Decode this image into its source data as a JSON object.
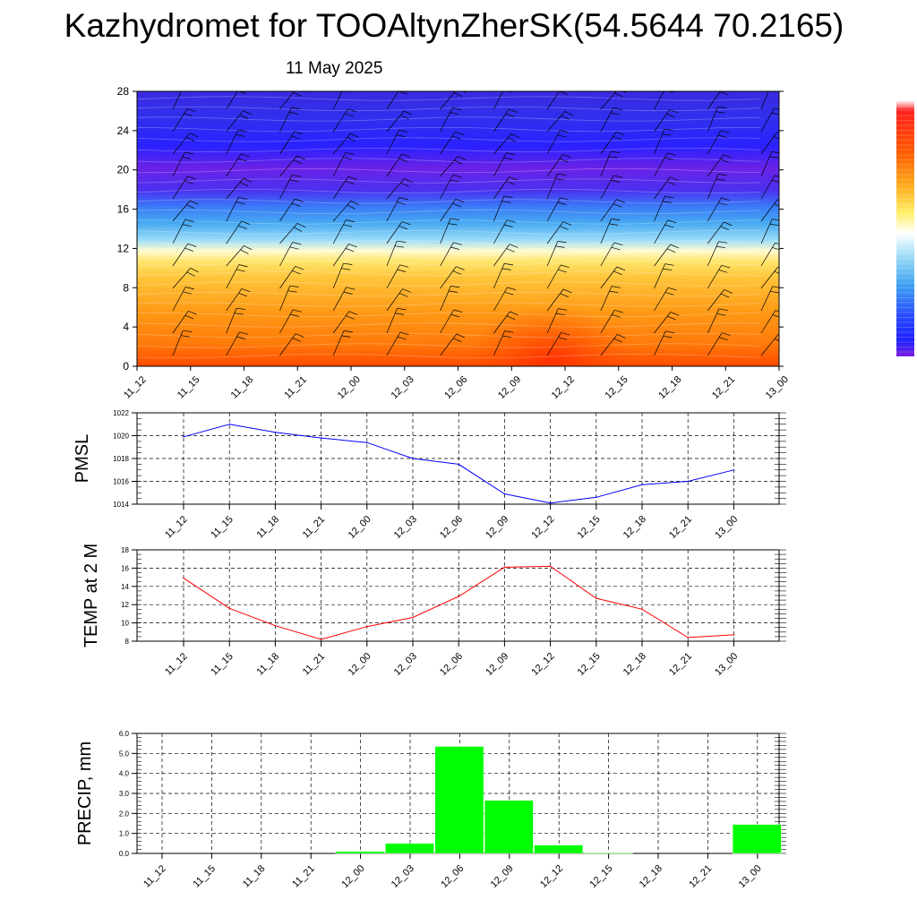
{
  "title": "Kazhydromet for TOOAltynZherSK(54.5644 70.2165)",
  "date": "11 May 2025",
  "colors": {
    "pmsl": "#0000ff",
    "temp": "#ff0000",
    "precip": "#00ff00",
    "wind_barb": "#000000",
    "cross_section_scale": [
      "#5a12e0",
      "#2020ff",
      "#2a4cff",
      "#3fa2f0",
      "#a6e0f8",
      "#fff7a0",
      "#ffd84a",
      "#ffb020",
      "#ff8a10",
      "#ff5a00",
      "#e01010"
    ]
  },
  "chart_data": [
    {
      "type": "heatmap",
      "title": "",
      "x": [
        "11_12",
        "11_15",
        "11_18",
        "11_21",
        "12_00",
        "12_03",
        "12_06",
        "12_09",
        "12_12",
        "12_15",
        "12_18",
        "12_21",
        "13_00"
      ],
      "y_ticks": [
        "0",
        "4",
        "8",
        "12",
        "16",
        "20",
        "24",
        "28"
      ],
      "ylim": [
        0,
        28
      ],
      "colorbar": "right",
      "wind_barbs": true
    },
    {
      "type": "line",
      "ylabel": "PMSL",
      "x": [
        "11_12",
        "11_15",
        "11_18",
        "11_21",
        "12_00",
        "12_03",
        "12_06",
        "12_09",
        "12_12",
        "12_15",
        "12_18",
        "12_21",
        "13_00"
      ],
      "values": [
        1019.9,
        1021.0,
        1020.3,
        1019.8,
        1019.4,
        1018.0,
        1017.5,
        1014.9,
        1014.1,
        1014.6,
        1015.7,
        1016.0,
        1017.0
      ],
      "ylim": [
        1014,
        1022
      ],
      "y_ticks": [
        "1014",
        "1016",
        "1018",
        "1020",
        "1022"
      ],
      "grid": true
    },
    {
      "type": "line",
      "ylabel": "TEMP at 2 M",
      "x": [
        "11_12",
        "11_15",
        "11_18",
        "11_21",
        "12_00",
        "12_03",
        "12_06",
        "12_09",
        "12_12",
        "12_15",
        "12_18",
        "12_21",
        "13_00"
      ],
      "values": [
        14.9,
        11.6,
        9.7,
        8.2,
        9.6,
        10.6,
        12.9,
        16.1,
        16.2,
        12.7,
        11.5,
        8.4,
        8.7
      ],
      "ylim": [
        8,
        18
      ],
      "y_ticks": [
        "8",
        "10",
        "12",
        "14",
        "16",
        "18"
      ],
      "grid": true
    },
    {
      "type": "bar",
      "ylabel": "PRECIP, mm",
      "categories": [
        "11_12",
        "11_15",
        "11_18",
        "11_21",
        "12_00",
        "12_03",
        "12_06",
        "12_09",
        "12_12",
        "12_15",
        "12_18",
        "12_21",
        "13_00"
      ],
      "values": [
        0,
        0,
        0,
        0,
        0.1,
        0.5,
        5.35,
        2.65,
        0.42,
        0.04,
        0,
        0,
        1.45
      ],
      "ylim": [
        0,
        6
      ],
      "y_ticks": [
        "0.0",
        "1.0",
        "2.0",
        "3.0",
        "4.0",
        "5.0",
        "6.0"
      ],
      "grid": true
    }
  ]
}
